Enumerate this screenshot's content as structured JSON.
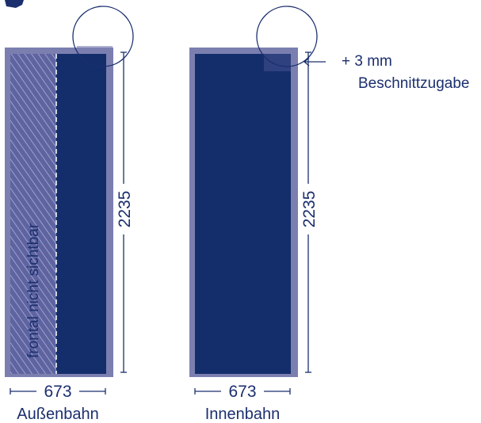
{
  "colors": {
    "panel": "#142d6b",
    "bleed": "#7b7fb0",
    "hatch": "#8e93c2",
    "text": "#1b2f6e",
    "line": "#1b2f6e",
    "dashed": "#ffffff"
  },
  "bleed_note": {
    "line1": "+ 3 mm",
    "line2": "Beschnittzugabe"
  },
  "panels": {
    "outer": {
      "width_label": "673",
      "height_label": "2235",
      "name": "Außenbahn",
      "hidden_note": "frontal nicht sichtbar"
    },
    "inner": {
      "width_label": "673",
      "height_label": "2235",
      "name": "Innenbahn"
    }
  }
}
